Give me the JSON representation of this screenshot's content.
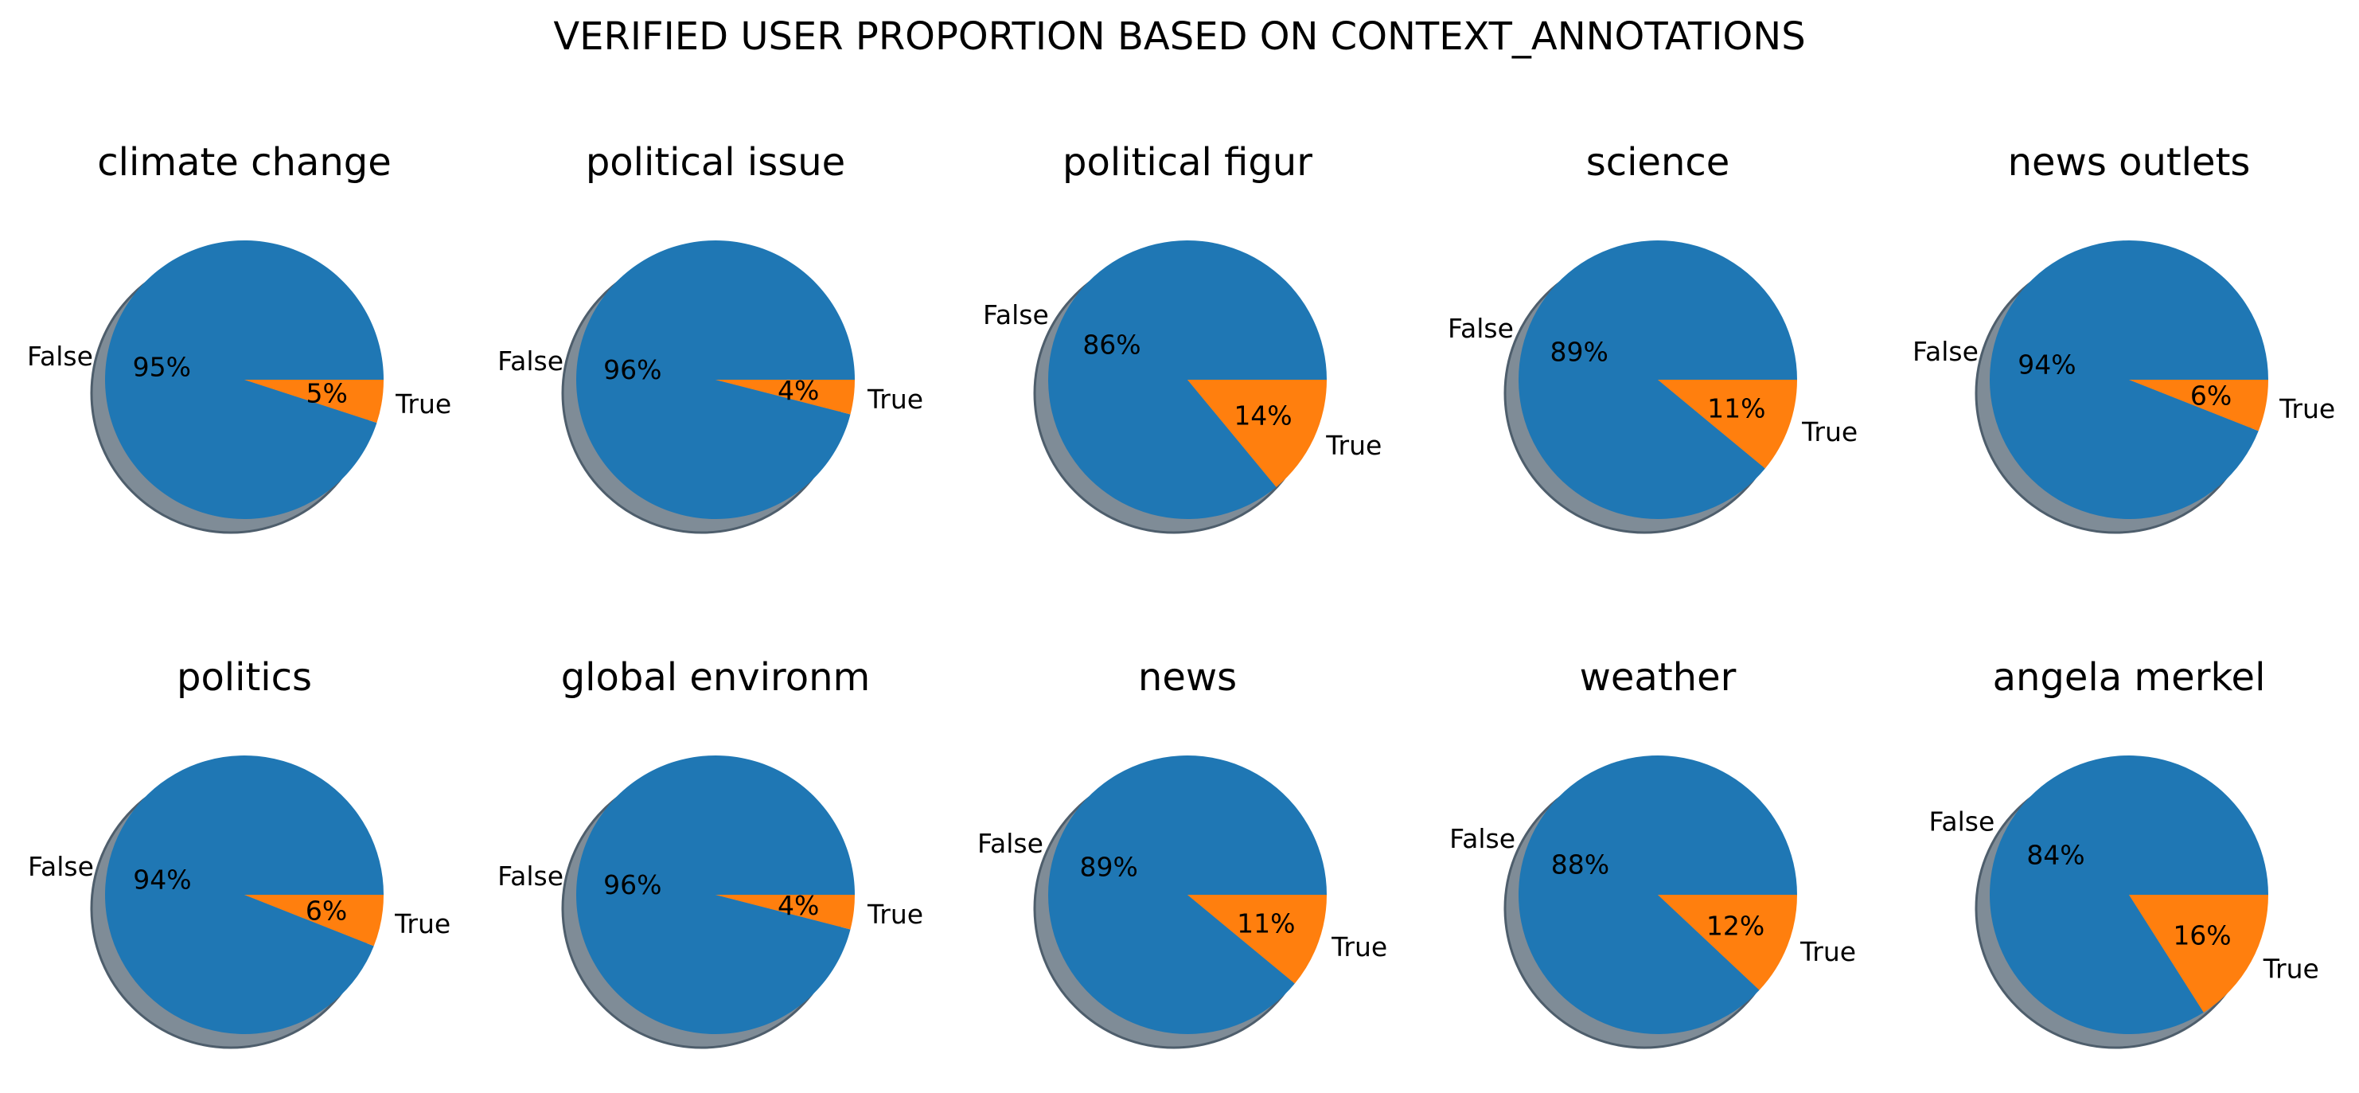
{
  "chart_data": {
    "type": "pie",
    "title": "VERIFIED USER PROPORTION BASED ON CONTEXT_ANNOTATIONS",
    "labels": [
      "False",
      "True"
    ],
    "colors": {
      "False": "#1f77b4",
      "True": "#ff7f0e",
      "shadow": "#7f8c97"
    },
    "charts": [
      {
        "title": "climate change",
        "values": [
          95,
          5
        ],
        "percent_labels": [
          "95%",
          "5%"
        ]
      },
      {
        "title": "political issue",
        "values": [
          96,
          4
        ],
        "percent_labels": [
          "96%",
          "4%"
        ]
      },
      {
        "title": "political figur",
        "values": [
          86,
          14
        ],
        "percent_labels": [
          "86%",
          "14%"
        ]
      },
      {
        "title": "science",
        "values": [
          89,
          11
        ],
        "percent_labels": [
          "89%",
          "11%"
        ]
      },
      {
        "title": "news outlets",
        "values": [
          94,
          6
        ],
        "percent_labels": [
          "94%",
          "6%"
        ]
      },
      {
        "title": "politics",
        "values": [
          94,
          6
        ],
        "percent_labels": [
          "94%",
          "6%"
        ]
      },
      {
        "title": "global environm",
        "values": [
          96,
          4
        ],
        "percent_labels": [
          "96%",
          "4%"
        ]
      },
      {
        "title": "news",
        "values": [
          89,
          11
        ],
        "percent_labels": [
          "89%",
          "11%"
        ]
      },
      {
        "title": "weather",
        "values": [
          88,
          12
        ],
        "percent_labels": [
          "88%",
          "12%"
        ]
      },
      {
        "title": "angela merkel",
        "values": [
          84,
          16
        ],
        "percent_labels": [
          "84%",
          "16%"
        ]
      }
    ]
  }
}
